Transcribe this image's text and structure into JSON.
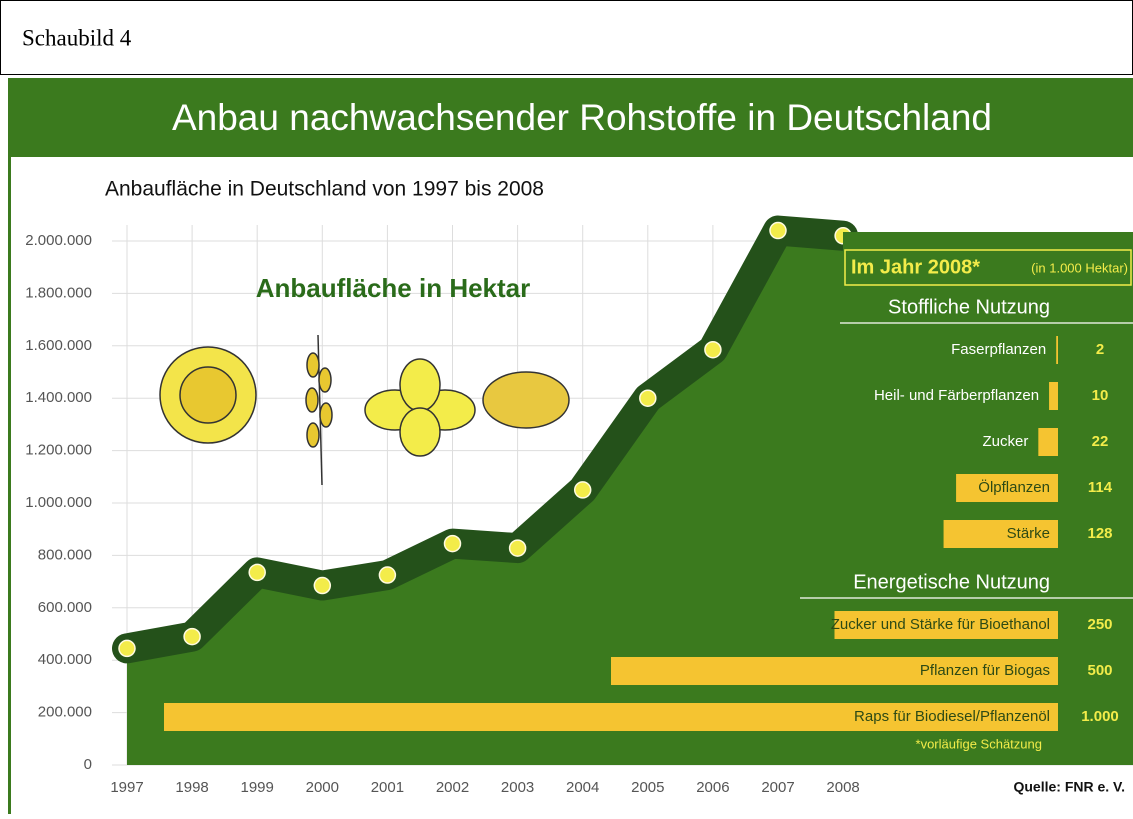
{
  "header": {
    "label": "Schaubild 4"
  },
  "chart_data": [
    {
      "type": "area",
      "title": "Anbau nachwachsender Rohstoffe in Deutschland",
      "subtitle": "Anbaufläche in Deutschland von 1997 bis 2008",
      "annotation": "Anbaufläche in Hektar",
      "source": "Quelle: FNR e. V.",
      "categories": [
        "1997",
        "1998",
        "1999",
        "2000",
        "2001",
        "2002",
        "2003",
        "2004",
        "2005",
        "2006",
        "2007",
        "2008"
      ],
      "values": [
        445000,
        490000,
        735000,
        685000,
        725000,
        845000,
        828000,
        1050000,
        1400000,
        1585000,
        2040000,
        2020000
      ],
      "ylim": [
        0,
        2000000
      ],
      "yticks": [
        0,
        {
          "value": 200000,
          "label": "200.000"
        },
        {
          "value": 400000,
          "label": "400.000"
        },
        {
          "value": 600000,
          "label": "600.000"
        },
        {
          "value": 800000,
          "label": "800.000"
        },
        {
          "value": 1000000,
          "label": "1.000.000"
        },
        {
          "value": 1200000,
          "label": "1.200.000"
        },
        {
          "value": 1400000,
          "label": "1.400.000"
        },
        {
          "value": 1600000,
          "label": "1.600.000"
        },
        {
          "value": 1800000,
          "label": "1.800.000"
        },
        {
          "value": 2000000,
          "label": "2.000.000"
        }
      ],
      "grid": true,
      "color": "#3b7a1e",
      "line_color": "#24511a",
      "marker_color": "#f3ec4a"
    },
    {
      "type": "bar",
      "orientation": "horizontal",
      "title": "Im Jahr 2008*",
      "subtitle": "(in 1.000 Hektar)",
      "footnote": "*vorläufige Schätzung",
      "xlim": [
        0,
        1000
      ],
      "color": "#f5c431",
      "groups": [
        {
          "name": "Stoffliche Nutzung",
          "categories": [
            "Faserpflanzen",
            "Heil- und Färberpflanzen",
            "Zucker",
            "Ölpflanzen",
            "Stärke"
          ],
          "values": [
            2,
            10,
            22,
            114,
            128
          ]
        },
        {
          "name": "Energetische Nutzung",
          "categories": [
            "Zucker und Stärke für Bioethanol",
            "Pflanzen für Biogas",
            "Raps für Biodiesel/Pflanzenöl"
          ],
          "values": [
            250,
            500,
            1000
          ],
          "value_labels": [
            "250",
            "500",
            "1.000"
          ]
        }
      ]
    }
  ]
}
